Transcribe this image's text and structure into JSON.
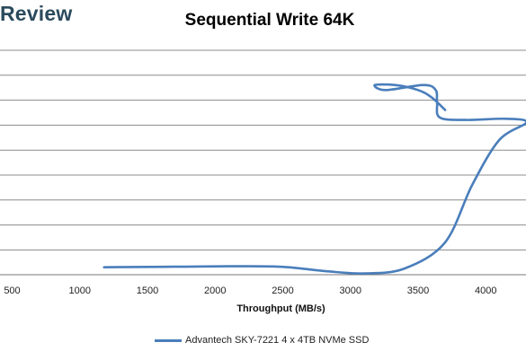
{
  "brand": {
    "text": "Review"
  },
  "chart_data": {
    "type": "line",
    "title": "Sequential Write 64K",
    "xlabel": "Throughput (MB/s)",
    "ylabel": "",
    "x_ticks": [
      "500",
      "1000",
      "1500",
      "2000",
      "2500",
      "3000",
      "3500",
      "4000"
    ],
    "xlim": [
      500,
      4300
    ],
    "grid": true,
    "legend_position": "bottom",
    "series": [
      {
        "name": "Advantech SKY-7221 4 x 4TB NVMe SSD",
        "color": "#4a7ebb",
        "points": [
          [
            1180,
            0.3
          ],
          [
            1700,
            0.32
          ],
          [
            2430,
            0.33
          ],
          [
            2800,
            0.15
          ],
          [
            3100,
            0.05
          ],
          [
            3400,
            0.25
          ],
          [
            3700,
            1.3
          ],
          [
            3900,
            3.6
          ],
          [
            4100,
            5.4
          ],
          [
            4300,
            6.1
          ],
          [
            4150,
            6.25
          ],
          [
            3850,
            6.2
          ],
          [
            3660,
            6.3
          ],
          [
            3640,
            6.9
          ],
          [
            3630,
            7.4
          ],
          [
            3540,
            7.6
          ],
          [
            3260,
            7.4
          ],
          [
            3180,
            7.6
          ],
          [
            3330,
            7.6
          ],
          [
            3500,
            7.4
          ],
          [
            3600,
            7.1
          ],
          [
            3700,
            6.6
          ]
        ]
      }
    ]
  }
}
